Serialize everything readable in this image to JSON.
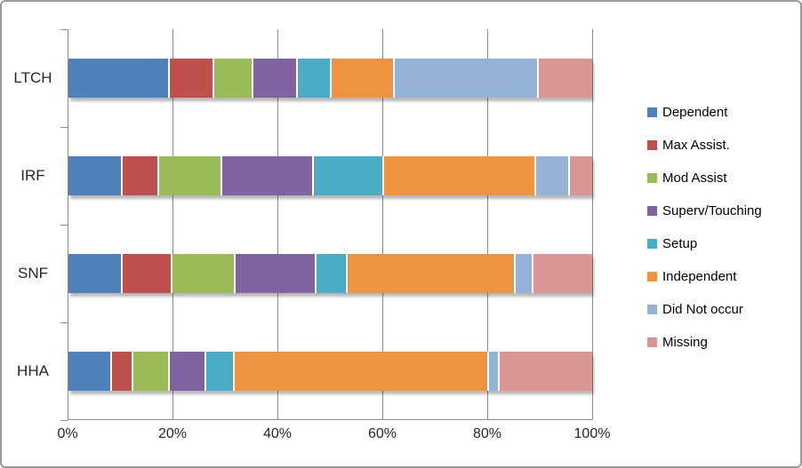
{
  "chart_data": {
    "type": "bar",
    "orientation": "horizontal",
    "stacked": true,
    "unit": "%",
    "categories": [
      "LTCH",
      "IRF",
      "SNF",
      "HHA"
    ],
    "series": [
      {
        "name": "Dependent",
        "color": "#4F81BD",
        "values": [
          19,
          10,
          10,
          8
        ]
      },
      {
        "name": "Max Assist.",
        "color": "#C0504D",
        "values": [
          8.5,
          7,
          9.5,
          4
        ]
      },
      {
        "name": "Mod Assist",
        "color": "#9BBB59",
        "values": [
          7.5,
          12,
          12,
          7
        ]
      },
      {
        "name": "Superv/Touching",
        "color": "#8064A2",
        "values": [
          8.5,
          17.5,
          15.5,
          7
        ]
      },
      {
        "name": "Setup",
        "color": "#4BACC6",
        "values": [
          6.5,
          13.5,
          6,
          5.5
        ]
      },
      {
        "name": "Independent",
        "color": "#EE9440",
        "values": [
          12,
          29,
          32,
          48.5
        ]
      },
      {
        "name": "Did Not occur",
        "color": "#95B3D7",
        "values": [
          27.5,
          6.5,
          3.5,
          2
        ]
      },
      {
        "name": "Missing",
        "color": "#D99694",
        "values": [
          10.5,
          4.5,
          11.5,
          18
        ]
      }
    ],
    "x_axis": {
      "min": 0,
      "max": 100,
      "tick_labels": [
        "0%",
        "20%",
        "40%",
        "60%",
        "80%",
        "100%"
      ],
      "tick_values": [
        0,
        20,
        40,
        60,
        80,
        100
      ]
    },
    "grid": true,
    "legend_position": "right"
  },
  "colors": {
    "grid": "#8C8C8C",
    "axis_text": "#262626",
    "legend_text": "#000000",
    "background": "#FFFFFF",
    "frame_border": "#9A9A9A"
  }
}
